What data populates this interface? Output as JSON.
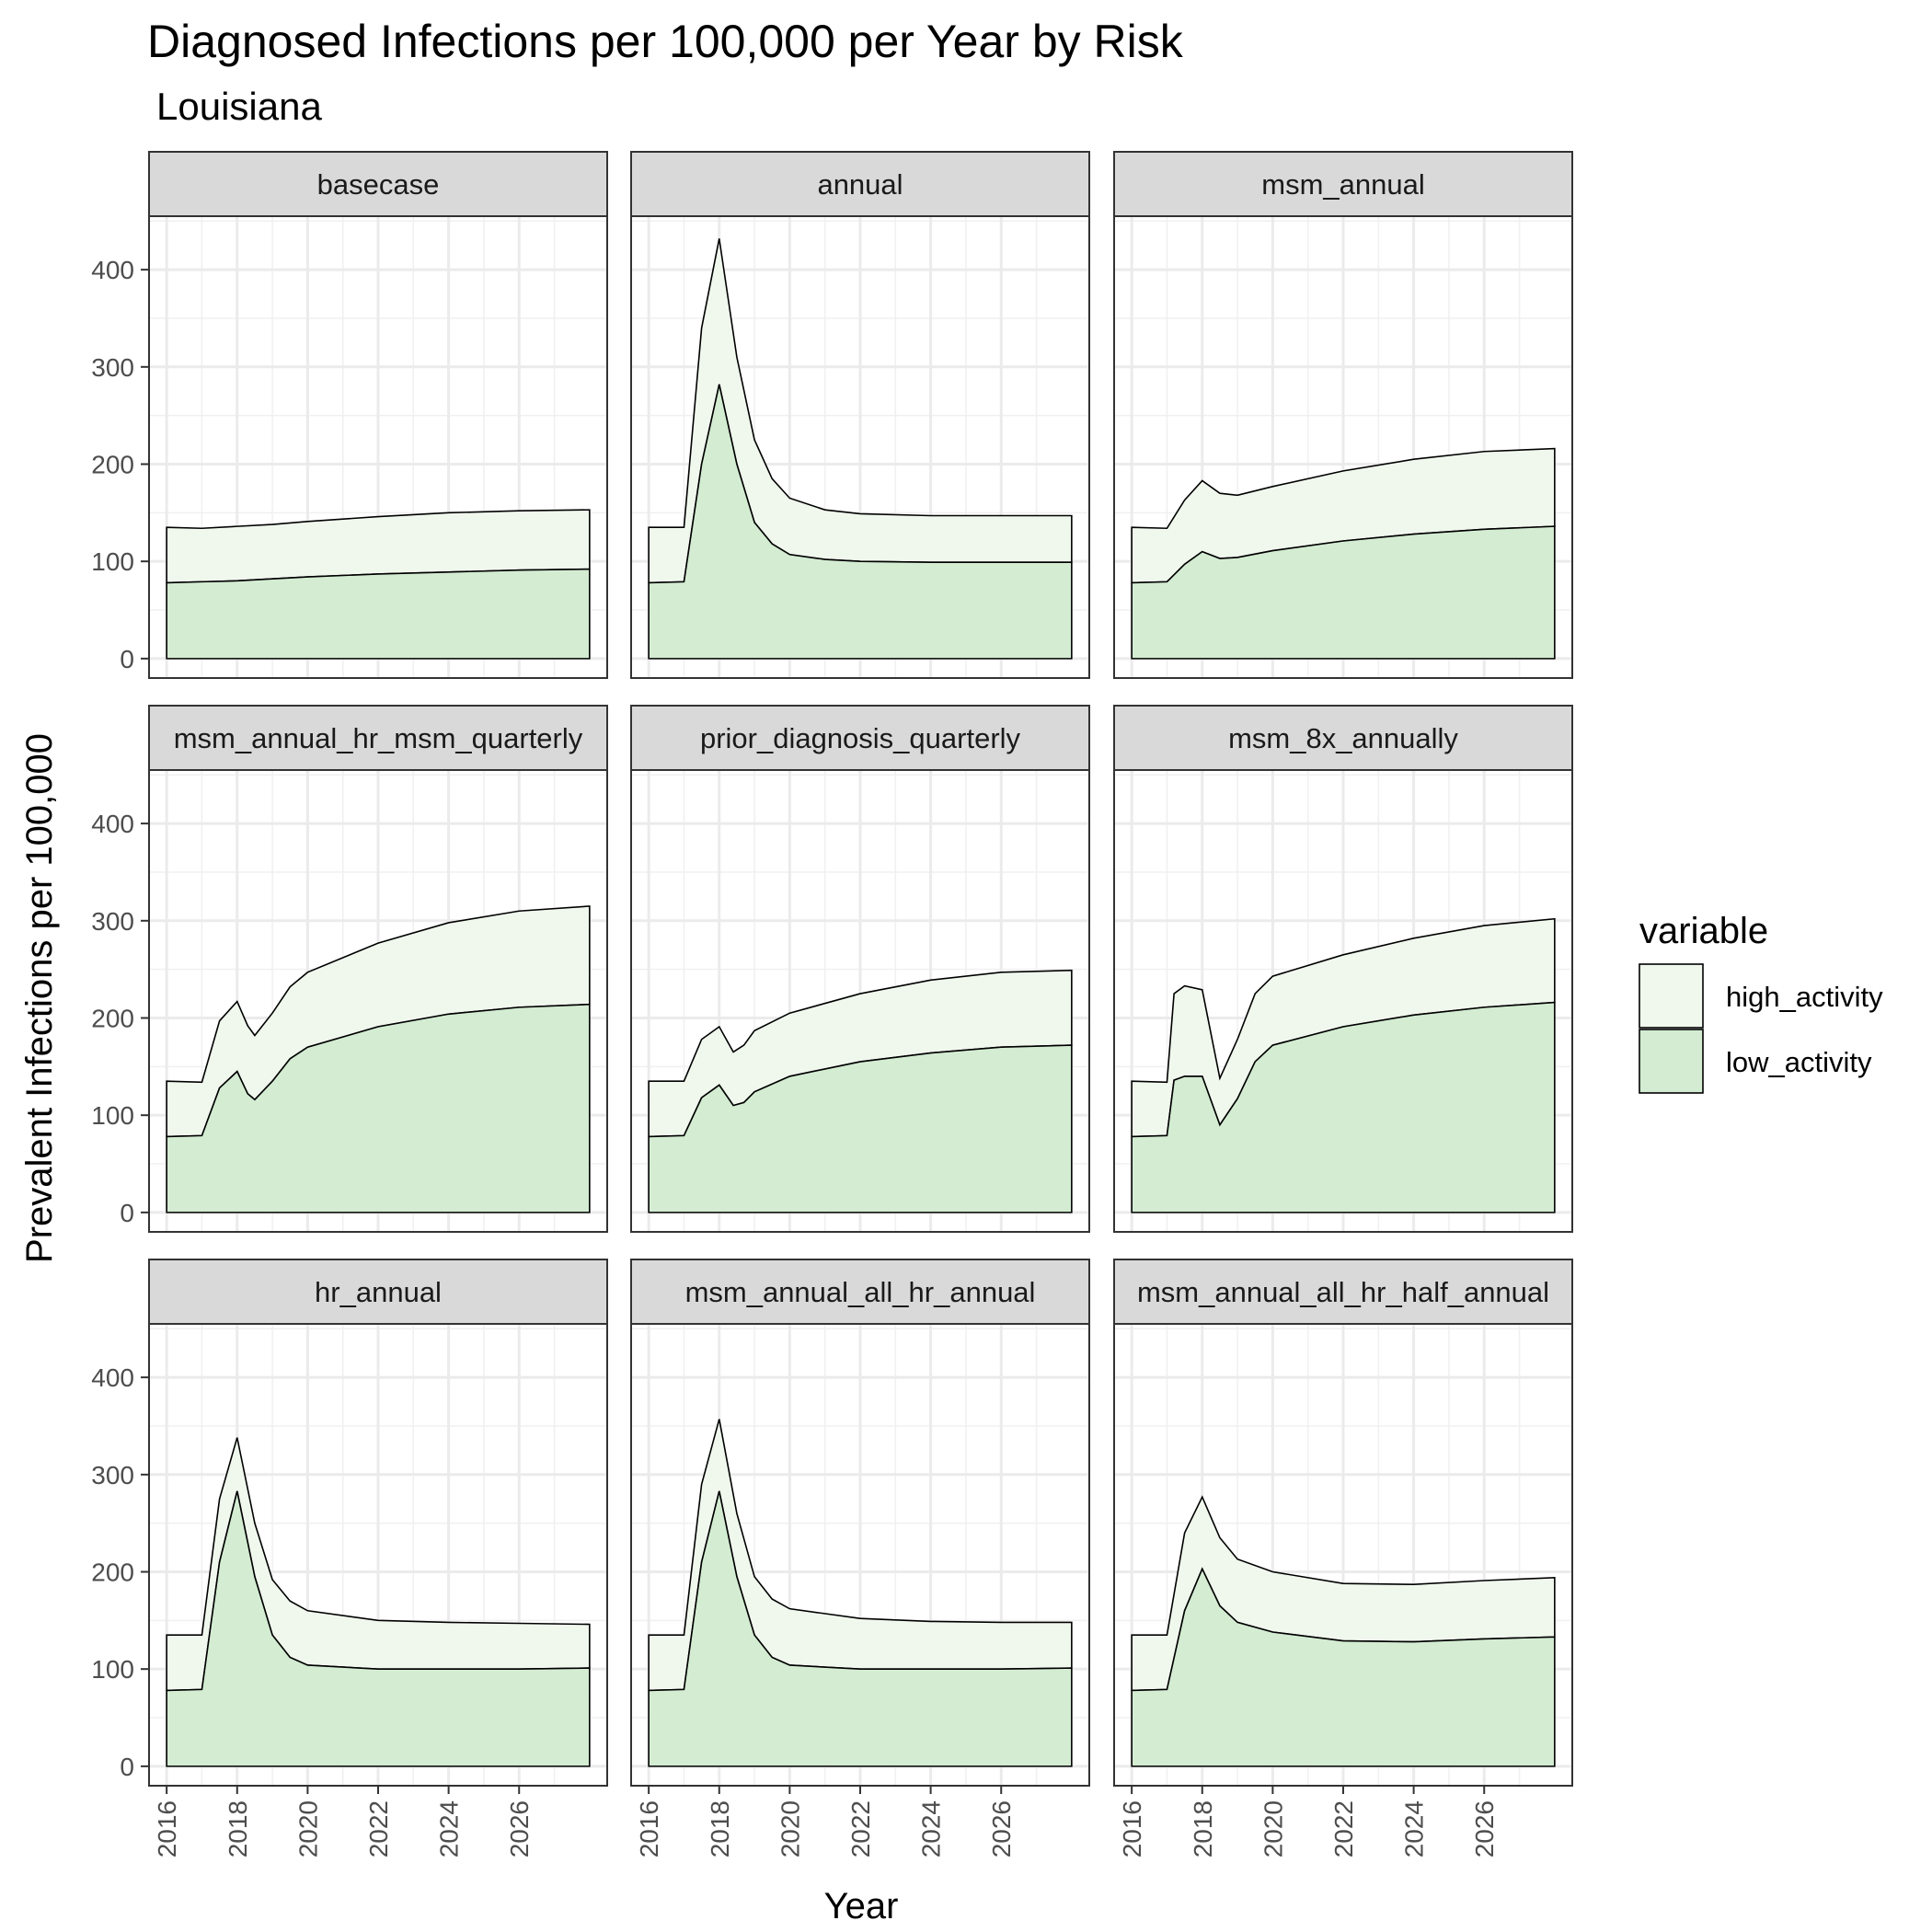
{
  "chart_data": {
    "type": "area",
    "title": "Diagnosed Infections per 100,000 per Year by Risk",
    "subtitle": "Louisiana",
    "xlabel": "Year",
    "ylabel": "Prevalent Infections per 100,000",
    "xlim": [
      2015.5,
      2028.5
    ],
    "ylim": [
      -20,
      455
    ],
    "x_ticks": [
      2016,
      2018,
      2020,
      2022,
      2024,
      2026
    ],
    "y_ticks": [
      0,
      100,
      200,
      300,
      400
    ],
    "grid": true,
    "stacked": true,
    "legend": {
      "title": "variable",
      "position": "right",
      "entries": [
        {
          "label": "high_activity",
          "color": "#f0f8ee"
        },
        {
          "label": "low_activity",
          "color": "#d3ecd2"
        }
      ]
    },
    "panels": [
      {
        "label": "basecase",
        "low": [
          [
            2016,
            78
          ],
          [
            2017,
            79
          ],
          [
            2018,
            80
          ],
          [
            2019,
            82
          ],
          [
            2020,
            84
          ],
          [
            2022,
            87
          ],
          [
            2024,
            89
          ],
          [
            2026,
            91
          ],
          [
            2028,
            92
          ]
        ],
        "high": [
          [
            2016,
            135
          ],
          [
            2017,
            134
          ],
          [
            2018,
            136
          ],
          [
            2019,
            138
          ],
          [
            2020,
            141
          ],
          [
            2022,
            146
          ],
          [
            2024,
            150
          ],
          [
            2026,
            152
          ],
          [
            2028,
            153
          ]
        ]
      },
      {
        "label": "annual",
        "low": [
          [
            2016,
            78
          ],
          [
            2017,
            79
          ],
          [
            2017.5,
            200
          ],
          [
            2018,
            282
          ],
          [
            2018.5,
            200
          ],
          [
            2019,
            140
          ],
          [
            2019.5,
            118
          ],
          [
            2020,
            107
          ],
          [
            2021,
            102
          ],
          [
            2022,
            100
          ],
          [
            2024,
            99
          ],
          [
            2026,
            99
          ],
          [
            2028,
            99
          ]
        ],
        "high": [
          [
            2016,
            135
          ],
          [
            2017,
            135
          ],
          [
            2017.5,
            340
          ],
          [
            2018,
            432
          ],
          [
            2018.5,
            310
          ],
          [
            2019,
            225
          ],
          [
            2019.5,
            185
          ],
          [
            2020,
            165
          ],
          [
            2021,
            153
          ],
          [
            2022,
            149
          ],
          [
            2024,
            147
          ],
          [
            2026,
            147
          ],
          [
            2028,
            147
          ]
        ]
      },
      {
        "label": "msm_annual",
        "low": [
          [
            2016,
            78
          ],
          [
            2017,
            79
          ],
          [
            2017.5,
            97
          ],
          [
            2018,
            110
          ],
          [
            2018.5,
            103
          ],
          [
            2019,
            104
          ],
          [
            2020,
            111
          ],
          [
            2022,
            121
          ],
          [
            2024,
            128
          ],
          [
            2026,
            133
          ],
          [
            2028,
            136
          ]
        ],
        "high": [
          [
            2016,
            135
          ],
          [
            2017,
            134
          ],
          [
            2017.5,
            163
          ],
          [
            2018,
            183
          ],
          [
            2018.5,
            170
          ],
          [
            2019,
            168
          ],
          [
            2020,
            177
          ],
          [
            2022,
            193
          ],
          [
            2024,
            205
          ],
          [
            2026,
            213
          ],
          [
            2028,
            216
          ]
        ]
      },
      {
        "label": "msm_annual_hr_msm_quarterly",
        "low": [
          [
            2016,
            78
          ],
          [
            2017,
            79
          ],
          [
            2017.5,
            128
          ],
          [
            2018,
            145
          ],
          [
            2018.3,
            122
          ],
          [
            2018.5,
            116
          ],
          [
            2019,
            135
          ],
          [
            2019.5,
            158
          ],
          [
            2020,
            170
          ],
          [
            2022,
            191
          ],
          [
            2024,
            204
          ],
          [
            2026,
            211
          ],
          [
            2028,
            214
          ]
        ],
        "high": [
          [
            2016,
            135
          ],
          [
            2017,
            134
          ],
          [
            2017.5,
            197
          ],
          [
            2018,
            217
          ],
          [
            2018.3,
            192
          ],
          [
            2018.5,
            182
          ],
          [
            2019,
            205
          ],
          [
            2019.5,
            232
          ],
          [
            2020,
            247
          ],
          [
            2022,
            277
          ],
          [
            2024,
            298
          ],
          [
            2026,
            310
          ],
          [
            2028,
            315
          ]
        ]
      },
      {
        "label": "prior_diagnosis_quarterly",
        "low": [
          [
            2016,
            78
          ],
          [
            2017,
            79
          ],
          [
            2017.5,
            118
          ],
          [
            2018,
            131
          ],
          [
            2018.4,
            110
          ],
          [
            2018.7,
            113
          ],
          [
            2019,
            124
          ],
          [
            2020,
            140
          ],
          [
            2022,
            155
          ],
          [
            2024,
            164
          ],
          [
            2026,
            170
          ],
          [
            2028,
            172
          ]
        ],
        "high": [
          [
            2016,
            135
          ],
          [
            2017,
            135
          ],
          [
            2017.5,
            178
          ],
          [
            2018,
            191
          ],
          [
            2018.4,
            165
          ],
          [
            2018.7,
            172
          ],
          [
            2019,
            187
          ],
          [
            2020,
            205
          ],
          [
            2022,
            225
          ],
          [
            2024,
            239
          ],
          [
            2026,
            247
          ],
          [
            2028,
            249
          ]
        ]
      },
      {
        "label": "msm_8x_annually",
        "low": [
          [
            2016,
            78
          ],
          [
            2017,
            79
          ],
          [
            2017.2,
            136
          ],
          [
            2017.5,
            140
          ],
          [
            2018,
            140
          ],
          [
            2018.5,
            90
          ],
          [
            2019,
            117
          ],
          [
            2019.5,
            155
          ],
          [
            2020,
            172
          ],
          [
            2022,
            191
          ],
          [
            2024,
            203
          ],
          [
            2026,
            211
          ],
          [
            2028,
            216
          ]
        ],
        "high": [
          [
            2016,
            135
          ],
          [
            2017,
            134
          ],
          [
            2017.2,
            225
          ],
          [
            2017.5,
            233
          ],
          [
            2018,
            229
          ],
          [
            2018.5,
            138
          ],
          [
            2019,
            178
          ],
          [
            2019.5,
            225
          ],
          [
            2020,
            243
          ],
          [
            2022,
            265
          ],
          [
            2024,
            282
          ],
          [
            2026,
            295
          ],
          [
            2028,
            302
          ]
        ]
      },
      {
        "label": "hr_annual",
        "low": [
          [
            2016,
            78
          ],
          [
            2017,
            79
          ],
          [
            2017.5,
            210
          ],
          [
            2018,
            283
          ],
          [
            2018.5,
            195
          ],
          [
            2019,
            135
          ],
          [
            2019.5,
            112
          ],
          [
            2020,
            104
          ],
          [
            2022,
            100
          ],
          [
            2024,
            100
          ],
          [
            2026,
            100
          ],
          [
            2028,
            101
          ]
        ],
        "high": [
          [
            2016,
            135
          ],
          [
            2017,
            135
          ],
          [
            2017.5,
            275
          ],
          [
            2018,
            338
          ],
          [
            2018.5,
            250
          ],
          [
            2019,
            192
          ],
          [
            2019.5,
            170
          ],
          [
            2020,
            160
          ],
          [
            2022,
            150
          ],
          [
            2024,
            148
          ],
          [
            2026,
            147
          ],
          [
            2028,
            146
          ]
        ]
      },
      {
        "label": "msm_annual_all_hr_annual",
        "low": [
          [
            2016,
            78
          ],
          [
            2017,
            79
          ],
          [
            2017.5,
            210
          ],
          [
            2018,
            283
          ],
          [
            2018.5,
            195
          ],
          [
            2019,
            135
          ],
          [
            2019.5,
            112
          ],
          [
            2020,
            104
          ],
          [
            2022,
            100
          ],
          [
            2024,
            100
          ],
          [
            2026,
            100
          ],
          [
            2028,
            101
          ]
        ],
        "high": [
          [
            2016,
            135
          ],
          [
            2017,
            135
          ],
          [
            2017.5,
            290
          ],
          [
            2018,
            357
          ],
          [
            2018.5,
            260
          ],
          [
            2019,
            195
          ],
          [
            2019.5,
            172
          ],
          [
            2020,
            162
          ],
          [
            2022,
            152
          ],
          [
            2024,
            149
          ],
          [
            2026,
            148
          ],
          [
            2028,
            148
          ]
        ]
      },
      {
        "label": "msm_annual_all_hr_half_annual",
        "low": [
          [
            2016,
            78
          ],
          [
            2017,
            79
          ],
          [
            2017.5,
            160
          ],
          [
            2018,
            203
          ],
          [
            2018.5,
            165
          ],
          [
            2019,
            148
          ],
          [
            2020,
            138
          ],
          [
            2022,
            129
          ],
          [
            2024,
            128
          ],
          [
            2026,
            131
          ],
          [
            2028,
            133
          ]
        ],
        "high": [
          [
            2016,
            135
          ],
          [
            2017,
            135
          ],
          [
            2017.5,
            240
          ],
          [
            2018,
            277
          ],
          [
            2018.5,
            235
          ],
          [
            2019,
            213
          ],
          [
            2020,
            200
          ],
          [
            2022,
            188
          ],
          [
            2024,
            187
          ],
          [
            2026,
            191
          ],
          [
            2028,
            194
          ]
        ]
      }
    ]
  }
}
